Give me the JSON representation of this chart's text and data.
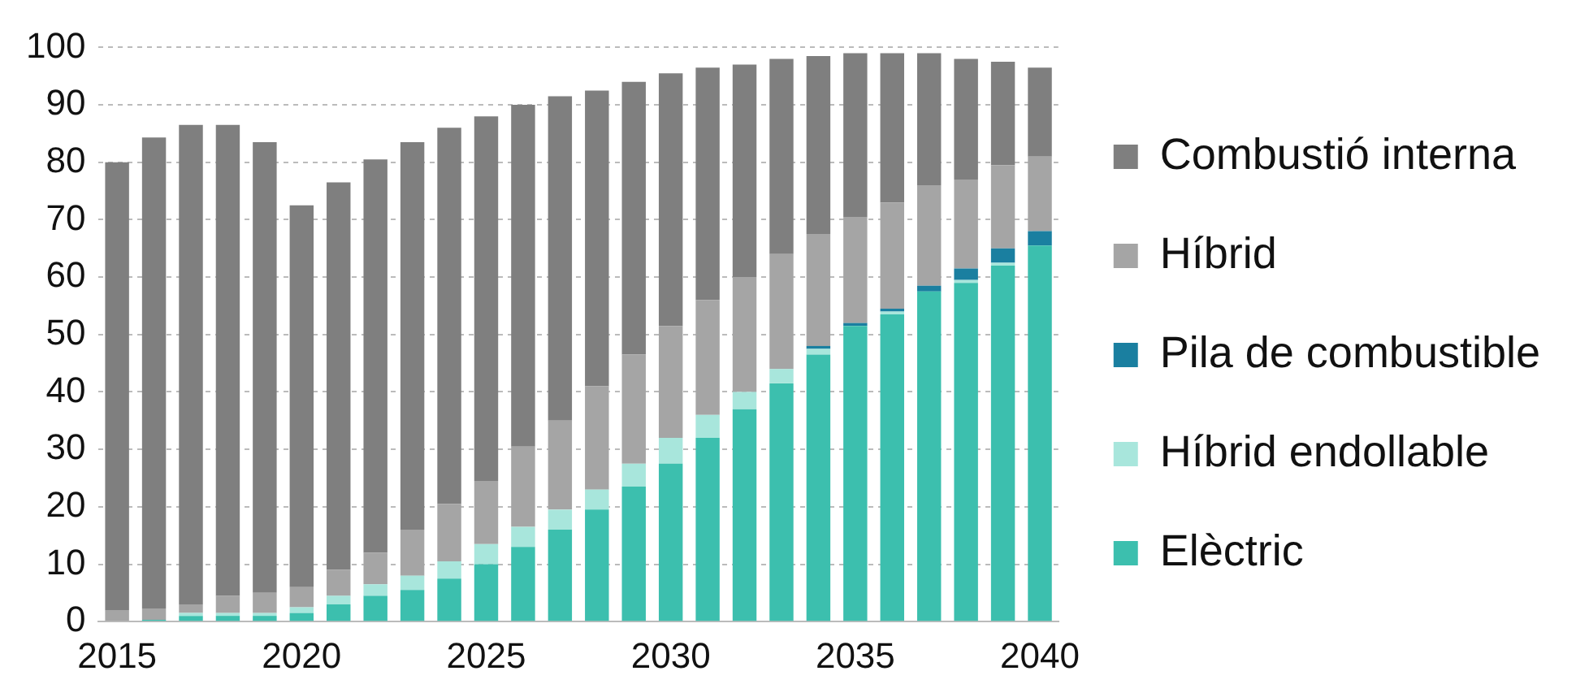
{
  "chart_data": {
    "type": "bar",
    "stacked": true,
    "categories": [
      "2015",
      null,
      null,
      null,
      null,
      "2020",
      null,
      null,
      null,
      null,
      "2025",
      null,
      null,
      null,
      null,
      "2030",
      null,
      null,
      null,
      null,
      "2035",
      null,
      null,
      null,
      null,
      "2040"
    ],
    "series": [
      {
        "name": "Elèctric",
        "color": "#3cbfae",
        "values": [
          0,
          0.3,
          1,
          1,
          1,
          1.5,
          3,
          4.5,
          5.5,
          7.5,
          10,
          13,
          16,
          19.5,
          23.5,
          27.5,
          32,
          37,
          41.5,
          46.5,
          51.5,
          53.5,
          57.5,
          59,
          62,
          65.5
        ]
      },
      {
        "name": "Híbrid endollable",
        "color": "#a8e6dc",
        "values": [
          0,
          null,
          0.5,
          0.5,
          0.5,
          1,
          1.5,
          2,
          2.5,
          3,
          3.5,
          3.5,
          3.5,
          3.5,
          4,
          4.5,
          4,
          3,
          2.5,
          1,
          0,
          0.5,
          0,
          0.5,
          0.5,
          0
        ]
      },
      {
        "name": "Pila de combustible",
        "color": "#1a7fa0",
        "values": [
          0,
          0,
          0,
          0,
          0,
          0,
          0,
          0,
          0,
          0,
          0,
          0,
          0,
          0,
          0,
          0,
          0,
          0,
          0,
          0.5,
          0.5,
          0.5,
          1,
          2,
          2.5,
          2.5
        ]
      },
      {
        "name": "Híbrid",
        "color": "#a5a5a5",
        "values": [
          2,
          2,
          1.5,
          3,
          3.5,
          3.5,
          4.5,
          5.5,
          8,
          10,
          11,
          14,
          15.5,
          18,
          19,
          19.5,
          20,
          20,
          20,
          19.5,
          18.5,
          18.5,
          17.5,
          15.5,
          14.5,
          13
        ]
      },
      {
        "name": "Combustió interna",
        "color": "#7f7f7f",
        "values": [
          78,
          82,
          83.5,
          82,
          78.5,
          66.5,
          67.5,
          68.5,
          67.5,
          65.5,
          63.5,
          59.5,
          56.5,
          51.5,
          47.5,
          44,
          40.5,
          37,
          34,
          31,
          28.5,
          26,
          23,
          21,
          18,
          15.5
        ]
      }
    ],
    "ylim": [
      0,
      100
    ],
    "yticks": [
      0,
      10,
      20,
      30,
      40,
      50,
      60,
      70,
      80,
      90,
      100
    ],
    "grid": "y",
    "legend": "right"
  }
}
